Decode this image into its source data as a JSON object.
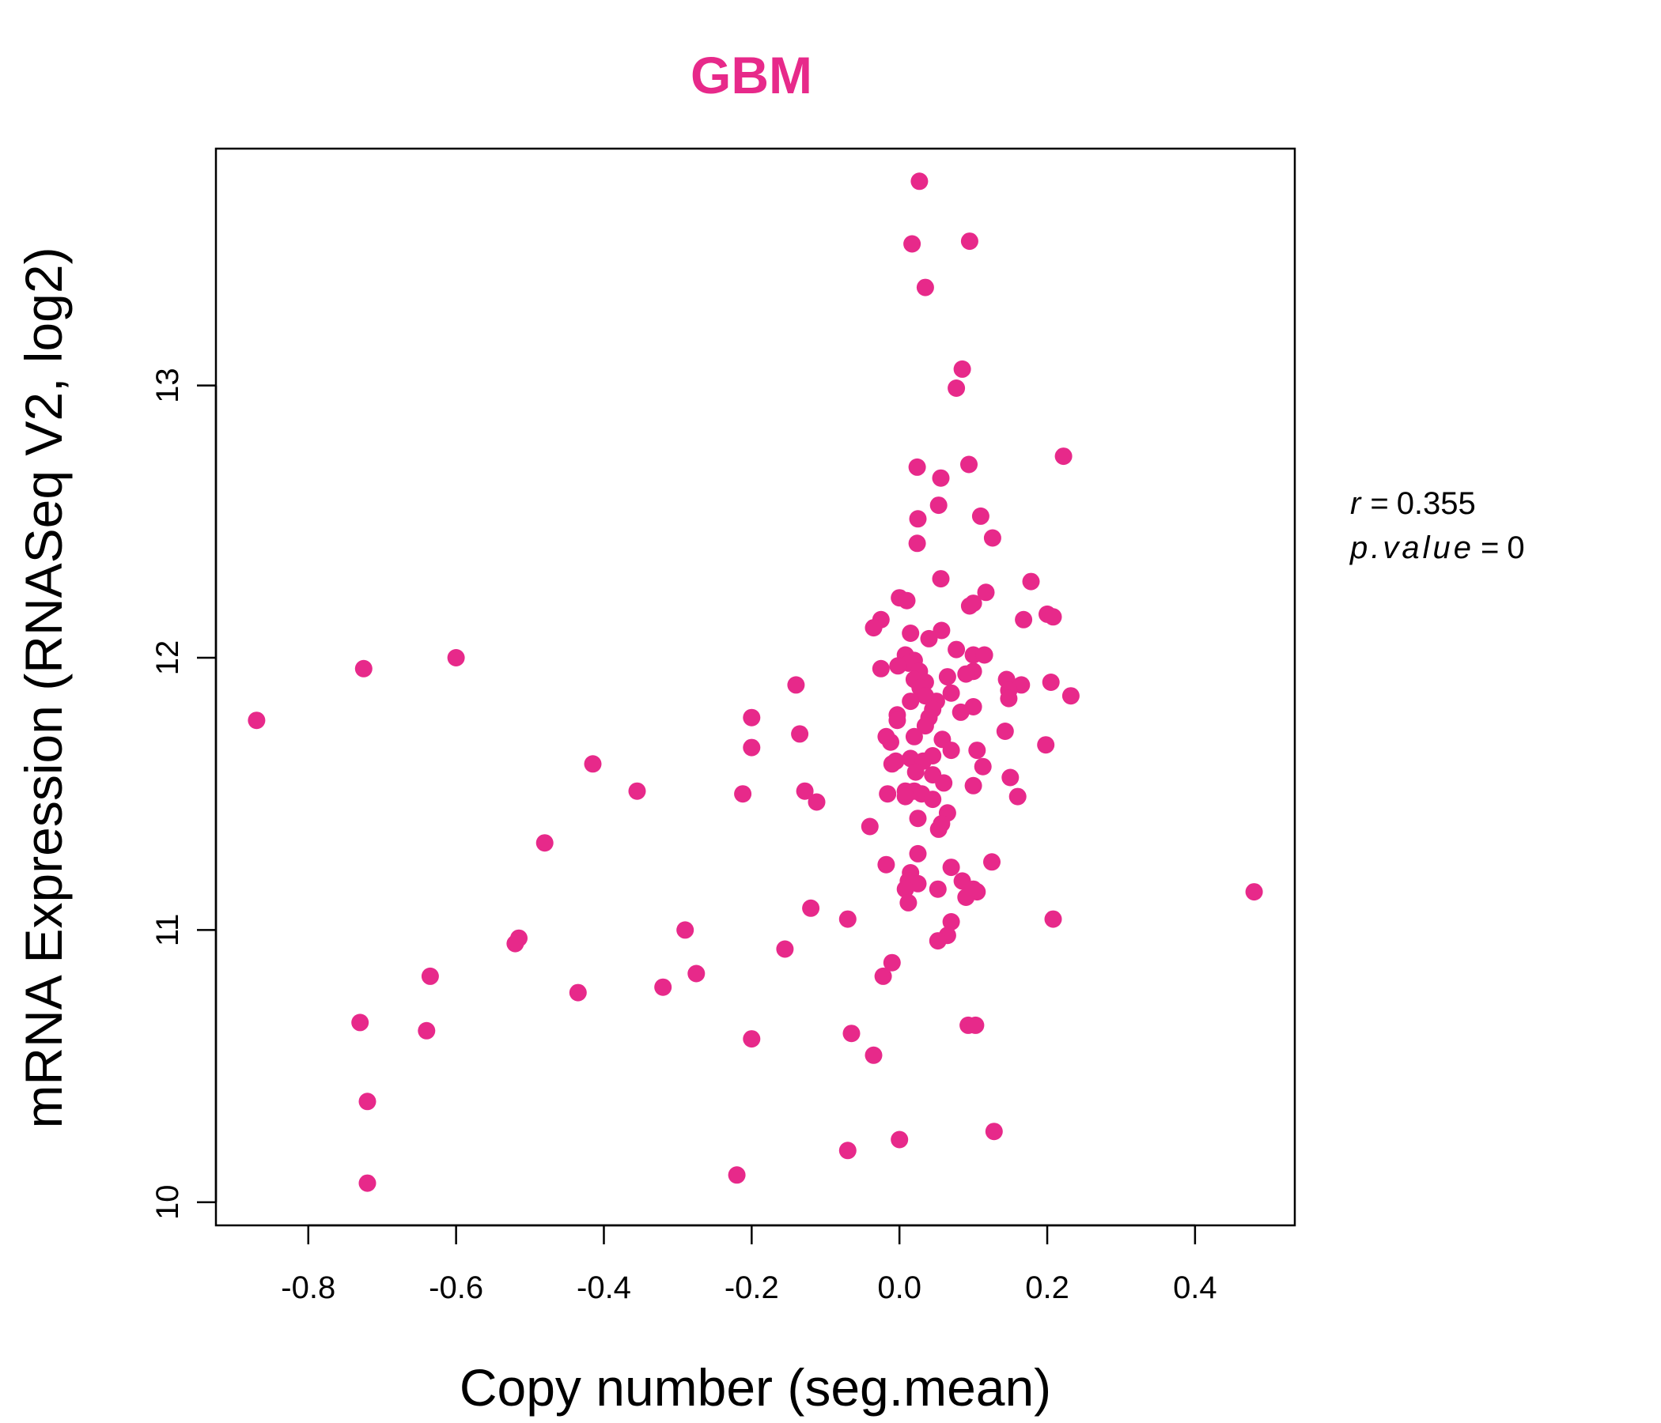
{
  "chart_data": {
    "type": "scatter",
    "title": "GBM",
    "xlabel": "Copy number (seg.mean)",
    "ylabel": "mRNA Expression (RNASeq V2, log2)",
    "xlim": [
      -0.925,
      0.535
    ],
    "ylim": [
      9.915,
      13.87
    ],
    "x_ticks": [
      -0.8,
      -0.6,
      -0.4,
      -0.2,
      0.0,
      0.2,
      0.4
    ],
    "x_tick_labels": [
      "-0.8",
      "-0.6",
      "-0.4",
      "-0.2",
      "0.0",
      "0.2",
      "0.4"
    ],
    "y_ticks": [
      10,
      11,
      12,
      13
    ],
    "y_tick_labels": [
      "10",
      "11",
      "12",
      "13"
    ],
    "grid": false,
    "legend": "none",
    "colors": {
      "points": "#e7298a",
      "title": "#e7298a"
    },
    "annotation": {
      "r_label": "r",
      "r_value": "0.355",
      "p_label": "p.value",
      "p_value": "0"
    },
    "points": [
      {
        "x": 0.027,
        "y": 13.75
      },
      {
        "x": 0.017,
        "y": 13.52
      },
      {
        "x": 0.095,
        "y": 13.53
      },
      {
        "x": 0.035,
        "y": 13.36
      },
      {
        "x": 0.085,
        "y": 13.06
      },
      {
        "x": 0.077,
        "y": 12.99
      },
      {
        "x": 0.222,
        "y": 12.74
      },
      {
        "x": 0.024,
        "y": 12.7
      },
      {
        "x": 0.094,
        "y": 12.71
      },
      {
        "x": 0.056,
        "y": 12.66
      },
      {
        "x": 0.053,
        "y": 12.56
      },
      {
        "x": 0.025,
        "y": 12.51
      },
      {
        "x": 0.11,
        "y": 12.52
      },
      {
        "x": 0.126,
        "y": 12.44
      },
      {
        "x": 0.024,
        "y": 12.42
      },
      {
        "x": 0.056,
        "y": 12.29
      },
      {
        "x": 0.178,
        "y": 12.28
      },
      {
        "x": 0.117,
        "y": 12.24
      },
      {
        "x": 0.0,
        "y": 12.22
      },
      {
        "x": 0.01,
        "y": 12.21
      },
      {
        "x": 0.095,
        "y": 12.19
      },
      {
        "x": 0.1,
        "y": 12.2
      },
      {
        "x": 0.2,
        "y": 12.16
      },
      {
        "x": 0.208,
        "y": 12.15
      },
      {
        "x": 0.168,
        "y": 12.14
      },
      {
        "x": -0.025,
        "y": 12.14
      },
      {
        "x": -0.035,
        "y": 12.11
      },
      {
        "x": 0.015,
        "y": 12.09
      },
      {
        "x": 0.057,
        "y": 12.1
      },
      {
        "x": 0.04,
        "y": 12.07
      },
      {
        "x": 0.077,
        "y": 12.03
      },
      {
        "x": 0.008,
        "y": 12.01
      },
      {
        "x": 0.1,
        "y": 12.01
      },
      {
        "x": 0.115,
        "y": 12.01
      },
      {
        "x": 0.02,
        "y": 11.99
      },
      {
        "x": 0.013,
        "y": 11.98
      },
      {
        "x": -0.002,
        "y": 11.97
      },
      {
        "x": -0.025,
        "y": 11.96
      },
      {
        "x": 0.027,
        "y": 11.95
      },
      {
        "x": 0.1,
        "y": 11.95
      },
      {
        "x": 0.09,
        "y": 11.94
      },
      {
        "x": 0.065,
        "y": 11.93
      },
      {
        "x": 0.02,
        "y": 11.92
      },
      {
        "x": 0.145,
        "y": 11.92
      },
      {
        "x": 0.035,
        "y": 11.91
      },
      {
        "x": 0.205,
        "y": 11.91
      },
      {
        "x": 0.165,
        "y": 11.9
      },
      {
        "x": 0.028,
        "y": 11.89
      },
      {
        "x": 0.148,
        "y": 11.88
      },
      {
        "x": 0.07,
        "y": 11.87
      },
      {
        "x": 0.035,
        "y": 11.86
      },
      {
        "x": 0.232,
        "y": 11.86
      },
      {
        "x": 0.015,
        "y": 11.84
      },
      {
        "x": 0.05,
        "y": 11.84
      },
      {
        "x": 0.148,
        "y": 11.85
      },
      {
        "x": 0.1,
        "y": 11.82
      },
      {
        "x": 0.045,
        "y": 11.81
      },
      {
        "x": 0.083,
        "y": 11.8
      },
      {
        "x": -0.003,
        "y": 11.79
      },
      {
        "x": 0.04,
        "y": 11.78
      },
      {
        "x": -0.003,
        "y": 11.77
      },
      {
        "x": 0.035,
        "y": 11.75
      },
      {
        "x": -0.018,
        "y": 11.71
      },
      {
        "x": 0.02,
        "y": 11.71
      },
      {
        "x": 0.058,
        "y": 11.7
      },
      {
        "x": 0.143,
        "y": 11.73
      },
      {
        "x": -0.012,
        "y": 11.69
      },
      {
        "x": 0.07,
        "y": 11.66
      },
      {
        "x": 0.105,
        "y": 11.66
      },
      {
        "x": 0.198,
        "y": 11.68
      },
      {
        "x": 0.045,
        "y": 11.64
      },
      {
        "x": 0.015,
        "y": 11.63
      },
      {
        "x": -0.005,
        "y": 11.62
      },
      {
        "x": 0.032,
        "y": 11.62
      },
      {
        "x": 0.113,
        "y": 11.6
      },
      {
        "x": -0.01,
        "y": 11.61
      },
      {
        "x": 0.022,
        "y": 11.58
      },
      {
        "x": 0.045,
        "y": 11.57
      },
      {
        "x": 0.15,
        "y": 11.56
      },
      {
        "x": 0.06,
        "y": 11.54
      },
      {
        "x": 0.1,
        "y": 11.53
      },
      {
        "x": 0.008,
        "y": 11.51
      },
      {
        "x": 0.02,
        "y": 11.51
      },
      {
        "x": 0.03,
        "y": 11.5
      },
      {
        "x": -0.016,
        "y": 11.5
      },
      {
        "x": 0.008,
        "y": 11.49
      },
      {
        "x": 0.045,
        "y": 11.48
      },
      {
        "x": 0.16,
        "y": 11.49
      },
      {
        "x": 0.065,
        "y": 11.43
      },
      {
        "x": 0.025,
        "y": 11.41
      },
      {
        "x": 0.057,
        "y": 11.39
      },
      {
        "x": 0.053,
        "y": 11.37
      },
      {
        "x": -0.04,
        "y": 11.38
      },
      {
        "x": 0.025,
        "y": 11.28
      },
      {
        "x": -0.018,
        "y": 11.24
      },
      {
        "x": 0.125,
        "y": 11.25
      },
      {
        "x": 0.07,
        "y": 11.23
      },
      {
        "x": 0.015,
        "y": 11.21
      },
      {
        "x": 0.012,
        "y": 11.18
      },
      {
        "x": 0.085,
        "y": 11.18
      },
      {
        "x": 0.025,
        "y": 11.17
      },
      {
        "x": 0.008,
        "y": 11.15
      },
      {
        "x": 0.052,
        "y": 11.15
      },
      {
        "x": 0.1,
        "y": 11.15
      },
      {
        "x": 0.105,
        "y": 11.14
      },
      {
        "x": 0.09,
        "y": 11.12
      },
      {
        "x": 0.012,
        "y": 11.1
      },
      {
        "x": 0.48,
        "y": 11.14
      },
      {
        "x": -0.12,
        "y": 11.08
      },
      {
        "x": -0.07,
        "y": 11.04
      },
      {
        "x": 0.07,
        "y": 11.03
      },
      {
        "x": 0.208,
        "y": 11.04
      },
      {
        "x": 0.065,
        "y": 10.98
      },
      {
        "x": 0.052,
        "y": 10.96
      },
      {
        "x": -0.155,
        "y": 10.93
      },
      {
        "x": -0.01,
        "y": 10.88
      },
      {
        "x": -0.022,
        "y": 10.83
      },
      {
        "x": -0.07,
        "y": 10.19
      },
      {
        "x": 0.0,
        "y": 10.23
      },
      {
        "x": 0.128,
        "y": 10.26
      },
      {
        "x": 0.093,
        "y": 10.65
      },
      {
        "x": 0.103,
        "y": 10.65
      },
      {
        "x": -0.065,
        "y": 10.62
      },
      {
        "x": -0.035,
        "y": 10.54
      },
      {
        "x": -0.2,
        "y": 10.6
      },
      {
        "x": -0.22,
        "y": 10.1
      },
      {
        "x": -0.212,
        "y": 11.5
      },
      {
        "x": -0.2,
        "y": 11.78
      },
      {
        "x": -0.2,
        "y": 11.67
      },
      {
        "x": -0.14,
        "y": 11.9
      },
      {
        "x": -0.135,
        "y": 11.72
      },
      {
        "x": -0.128,
        "y": 11.51
      },
      {
        "x": -0.112,
        "y": 11.47
      },
      {
        "x": -0.355,
        "y": 11.51
      },
      {
        "x": -0.415,
        "y": 11.61
      },
      {
        "x": -0.48,
        "y": 11.32
      },
      {
        "x": -0.515,
        "y": 10.97
      },
      {
        "x": -0.52,
        "y": 10.95
      },
      {
        "x": -0.29,
        "y": 11.0
      },
      {
        "x": -0.275,
        "y": 10.84
      },
      {
        "x": -0.32,
        "y": 10.79
      },
      {
        "x": -0.435,
        "y": 10.77
      },
      {
        "x": -0.635,
        "y": 10.83
      },
      {
        "x": -0.64,
        "y": 10.63
      },
      {
        "x": -0.73,
        "y": 10.66
      },
      {
        "x": -0.72,
        "y": 10.37
      },
      {
        "x": -0.72,
        "y": 10.07
      },
      {
        "x": -0.725,
        "y": 11.96
      },
      {
        "x": -0.6,
        "y": 12.0
      },
      {
        "x": -0.87,
        "y": 11.77
      }
    ]
  }
}
